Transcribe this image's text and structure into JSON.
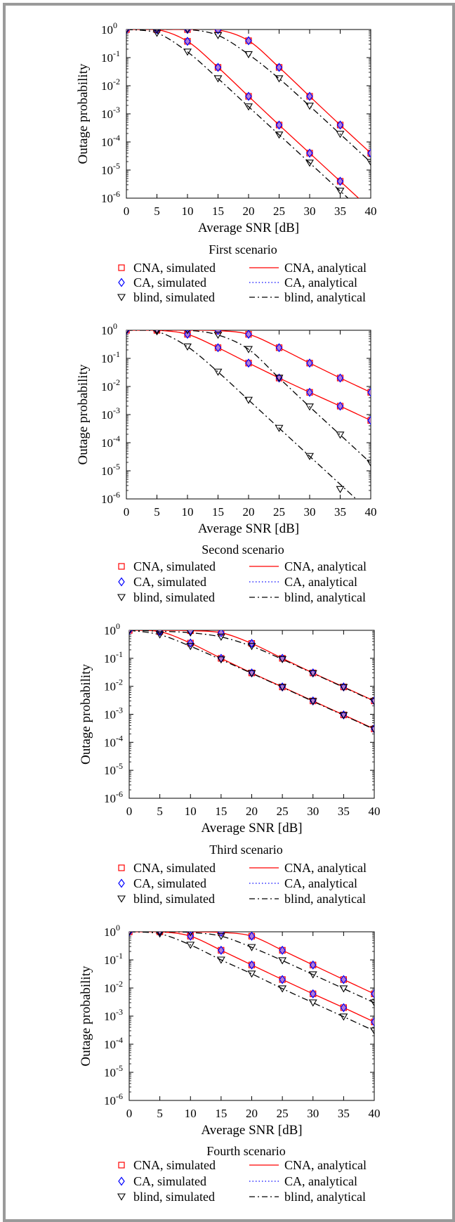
{
  "chart_data": [
    {
      "type": "line",
      "caption": "First scenario",
      "xlabel": "Average SNR [dB]",
      "ylabel": "Outage probability",
      "xlim": [
        0,
        40
      ],
      "ylim_log10": [
        -6,
        0
      ],
      "yscale": "log",
      "x_ticks": [
        "0",
        "5",
        "10",
        "15",
        "20",
        "25",
        "30",
        "35",
        "40"
      ],
      "x": [
        0,
        5,
        10,
        15,
        20,
        25,
        30,
        35,
        40
      ],
      "series": [
        {
          "name": "CNA, analytical",
          "group": "upper",
          "values": [
            1,
            1,
            1,
            0.97,
            0.4,
            0.045,
            0.0042,
            0.0004,
            4e-05
          ]
        },
        {
          "name": "CNA, analytical",
          "group": "lower",
          "values": [
            1,
            1,
            0.38,
            0.045,
            0.0042,
            0.0004,
            4e-05,
            4e-06,
            4e-07
          ]
        },
        {
          "name": "blind, analytical",
          "group": "upper",
          "values": [
            1,
            1,
            1,
            0.62,
            0.13,
            0.018,
            0.0019,
            0.00019,
            1.9e-05
          ]
        },
        {
          "name": "blind, analytical",
          "group": "lower",
          "values": [
            1,
            0.75,
            0.16,
            0.018,
            0.0018,
            0.00018,
            1.8e-05,
            1.8e-06,
            1.8e-07
          ]
        }
      ],
      "markers": [
        {
          "name": "CA, simulated",
          "x": [
            0,
            5,
            10,
            15,
            20,
            25,
            30,
            35,
            40
          ],
          "values": [
            1,
            1,
            1,
            0.97,
            0.4,
            0.045,
            0.0042,
            0.0004,
            4e-05
          ]
        },
        {
          "name": "CA, simulated",
          "x": [
            0,
            5,
            10,
            15,
            20,
            25,
            30,
            35
          ],
          "values": [
            1,
            1,
            0.38,
            0.045,
            0.0042,
            0.0004,
            4e-05,
            4e-06
          ]
        },
        {
          "name": "blind, simulated",
          "x": [
            0,
            5,
            10,
            15,
            20,
            25,
            30,
            35,
            40
          ],
          "values": [
            1,
            1,
            1,
            0.62,
            0.13,
            0.018,
            0.0019,
            0.00019,
            1.9e-05
          ]
        },
        {
          "name": "blind, simulated",
          "x": [
            0,
            5,
            10,
            15,
            20,
            25,
            30,
            35
          ],
          "values": [
            1,
            0.75,
            0.16,
            0.018,
            0.0018,
            0.00018,
            1.8e-05,
            1.8e-06
          ]
        }
      ]
    },
    {
      "type": "line",
      "caption": "Second scenario",
      "xlabel": "Average SNR [dB]",
      "ylabel": "Outage probability",
      "xlim": [
        0,
        40
      ],
      "ylim_log10": [
        -6,
        0
      ],
      "yscale": "log",
      "x_ticks": [
        "0",
        "5",
        "10",
        "15",
        "20",
        "25",
        "30",
        "35",
        "40"
      ],
      "x": [
        0,
        5,
        10,
        15,
        20,
        25,
        30,
        35,
        40
      ],
      "series": [
        {
          "name": "CNA, analytical",
          "group": "upper",
          "values": [
            1,
            1,
            1,
            0.97,
            0.72,
            0.24,
            0.068,
            0.02,
            0.0062
          ]
        },
        {
          "name": "CNA, analytical",
          "group": "lower",
          "values": [
            1,
            1,
            0.72,
            0.24,
            0.068,
            0.02,
            0.0062,
            0.002,
            0.00062
          ]
        },
        {
          "name": "blind, analytical",
          "group": "upper",
          "values": [
            1,
            1,
            1,
            0.68,
            0.21,
            0.02,
            0.0019,
            0.00019,
            1.9e-05
          ]
        },
        {
          "name": "blind, analytical",
          "group": "lower",
          "values": [
            1,
            0.9,
            0.26,
            0.033,
            0.0033,
            0.00033,
            3.3e-05,
            3.3e-06,
            3.3e-07
          ]
        }
      ],
      "markers": [
        {
          "name": "CA, simulated",
          "x": [
            0,
            5,
            10,
            15,
            20,
            25,
            30,
            35,
            40
          ],
          "values": [
            1,
            1,
            1,
            0.97,
            0.72,
            0.24,
            0.068,
            0.02,
            0.0062
          ]
        },
        {
          "name": "CA, simulated",
          "x": [
            0,
            5,
            10,
            15,
            20,
            25,
            30,
            35,
            40
          ],
          "values": [
            1,
            1,
            0.72,
            0.24,
            0.068,
            0.02,
            0.0062,
            0.002,
            0.00062
          ]
        },
        {
          "name": "blind, simulated",
          "x": [
            0,
            5,
            10,
            15,
            20,
            25,
            30,
            35,
            40
          ],
          "values": [
            1,
            1,
            1,
            0.68,
            0.21,
            0.02,
            0.0019,
            0.00019,
            1.9e-05
          ]
        },
        {
          "name": "blind, simulated",
          "x": [
            0,
            5,
            10,
            15,
            20,
            25,
            30,
            35
          ],
          "values": [
            1,
            0.9,
            0.26,
            0.033,
            0.0033,
            0.00033,
            3.3e-05,
            2.2e-06
          ]
        }
      ]
    },
    {
      "type": "line",
      "caption": "Third scenario",
      "xlabel": "Average SNR [dB]",
      "ylabel": "Outage probability",
      "xlim": [
        0,
        40
      ],
      "ylim_log10": [
        -6,
        0
      ],
      "yscale": "log",
      "x_ticks": [
        "0",
        "5",
        "10",
        "15",
        "20",
        "25",
        "30",
        "35",
        "40"
      ],
      "x": [
        0,
        5,
        10,
        15,
        20,
        25,
        30,
        35,
        40
      ],
      "series": [
        {
          "name": "CNA, analytical",
          "group": "upper",
          "values": [
            1,
            1,
            0.97,
            0.82,
            0.34,
            0.1,
            0.03,
            0.0095,
            0.003
          ]
        },
        {
          "name": "CNA, analytical",
          "group": "lower",
          "values": [
            1,
            0.9,
            0.35,
            0.1,
            0.03,
            0.0095,
            0.003,
            0.00095,
            0.0003
          ]
        },
        {
          "name": "blind, analytical",
          "group": "upper",
          "values": [
            1,
            0.93,
            0.82,
            0.58,
            0.27,
            0.092,
            0.029,
            0.0092,
            0.0029
          ]
        },
        {
          "name": "blind, analytical",
          "group": "lower",
          "values": [
            1,
            0.7,
            0.27,
            0.09,
            0.029,
            0.0092,
            0.0029,
            0.00092,
            0.00029
          ]
        }
      ],
      "markers": [
        {
          "name": "CA, simulated",
          "x": [
            0,
            5,
            10,
            15,
            20,
            25,
            30,
            35,
            40
          ],
          "values": [
            1,
            1,
            0.97,
            0.82,
            0.34,
            0.1,
            0.03,
            0.0095,
            0.003
          ]
        },
        {
          "name": "CA, simulated",
          "x": [
            0,
            5,
            10,
            15,
            20,
            25,
            30,
            35,
            40
          ],
          "values": [
            1,
            0.9,
            0.35,
            0.1,
            0.03,
            0.0095,
            0.003,
            0.00095,
            0.0003
          ]
        },
        {
          "name": "blind, simulated",
          "x": [
            0,
            5,
            10,
            15,
            20,
            25,
            30,
            35,
            40
          ],
          "values": [
            1,
            0.93,
            0.82,
            0.58,
            0.27,
            0.092,
            0.029,
            0.0092,
            0.0029
          ]
        },
        {
          "name": "blind, simulated",
          "x": [
            0,
            5,
            10,
            15,
            20,
            25,
            30,
            35,
            40
          ],
          "values": [
            1,
            0.7,
            0.27,
            0.09,
            0.029,
            0.0092,
            0.0029,
            0.00092,
            0.00029
          ]
        }
      ]
    },
    {
      "type": "line",
      "caption": "Fourth scenario",
      "xlabel": "Average SNR [dB]",
      "ylabel": "Outage probability",
      "xlim": [
        0,
        40
      ],
      "ylim_log10": [
        -6,
        0
      ],
      "yscale": "log",
      "x_ticks": [
        "0",
        "5",
        "10",
        "15",
        "20",
        "25",
        "30",
        "35",
        "40"
      ],
      "x": [
        0,
        5,
        10,
        15,
        20,
        25,
        30,
        35,
        40
      ],
      "series": [
        {
          "name": "CNA, analytical",
          "group": "upper",
          "values": [
            1,
            1,
            1,
            0.95,
            0.7,
            0.22,
            0.066,
            0.02,
            0.0062
          ]
        },
        {
          "name": "CNA, analytical",
          "group": "lower",
          "values": [
            1,
            1,
            0.7,
            0.22,
            0.066,
            0.02,
            0.0062,
            0.002,
            0.00062
          ]
        },
        {
          "name": "blind, analytical",
          "group": "upper",
          "values": [
            1,
            1,
            0.95,
            0.7,
            0.28,
            0.095,
            0.03,
            0.0095,
            0.003
          ]
        },
        {
          "name": "blind, analytical",
          "group": "lower",
          "values": [
            1,
            0.85,
            0.34,
            0.1,
            0.032,
            0.0095,
            0.003,
            0.00095,
            0.0003
          ]
        }
      ],
      "markers": [
        {
          "name": "CA, simulated",
          "x": [
            0,
            5,
            10,
            15,
            20,
            25,
            30,
            35,
            40
          ],
          "values": [
            1,
            1,
            1,
            0.95,
            0.7,
            0.22,
            0.066,
            0.02,
            0.0062
          ]
        },
        {
          "name": "CA, simulated",
          "x": [
            0,
            5,
            10,
            15,
            20,
            25,
            30,
            35,
            40
          ],
          "values": [
            1,
            1,
            0.7,
            0.22,
            0.066,
            0.02,
            0.0062,
            0.002,
            0.00062
          ]
        },
        {
          "name": "blind, simulated",
          "x": [
            0,
            5,
            10,
            15,
            20,
            25,
            30,
            35,
            40
          ],
          "values": [
            1,
            1,
            0.95,
            0.7,
            0.28,
            0.095,
            0.03,
            0.0095,
            0.003
          ]
        },
        {
          "name": "blind, simulated",
          "x": [
            0,
            5,
            10,
            15,
            20,
            25,
            30,
            35,
            40
          ],
          "values": [
            1,
            0.85,
            0.34,
            0.1,
            0.032,
            0.0095,
            0.003,
            0.00095,
            0.0003
          ]
        }
      ]
    }
  ],
  "legend": {
    "entries": [
      {
        "label": "CNA, simulated",
        "marker": "square",
        "color": "#ff0000"
      },
      {
        "label": "CA, simulated",
        "marker": "diamond",
        "color": "#0000ff"
      },
      {
        "label": "blind, simulated",
        "marker": "triangle-down",
        "color": "#000000"
      },
      {
        "label": "CNA, analytical",
        "line": "solid",
        "color": "#ff0000"
      },
      {
        "label": "CA, analytical",
        "line": "dotted",
        "color": "#0000ff"
      },
      {
        "label": "blind, analytical",
        "line": "dashdot",
        "color": "#000000"
      }
    ]
  },
  "colors": {
    "cna": "#ff0000",
    "ca": "#0000ff",
    "ca_marker_fill": "#b57cd6",
    "blind": "#000000",
    "frame_border": "#9a9a9a"
  }
}
